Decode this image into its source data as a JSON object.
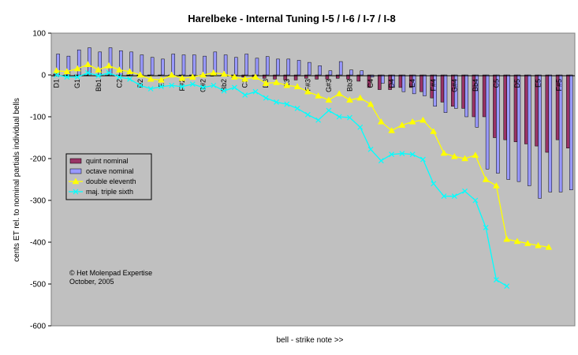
{
  "chart_data": {
    "type": "bar",
    "title": "Harelbeke - Internal Tuning I-5 / I-6 / I-7 / I-8",
    "xlabel": "bell - strike note >>",
    "ylabel": "cents ET rel. to nominal partials individual bells",
    "ylim": [
      -600,
      100
    ],
    "yticks": [
      100,
      0,
      -100,
      -200,
      -300,
      -400,
      -500,
      -600
    ],
    "grid": false,
    "background": "#c0c0c0",
    "legend_position": "left",
    "x_tick_labels": [
      "D1",
      "G1",
      "Bb1",
      "C2",
      "D2",
      "E2",
      "F#2",
      "G#2",
      "Bb2",
      "C3",
      "D3",
      "E3",
      "F#3",
      "G#3",
      "Bb3",
      "C4",
      "D4",
      "E4",
      "F#4",
      "G#4",
      "Bb4",
      "C5",
      "D5",
      "E5",
      "F#5"
    ],
    "x_tick_label_indices": [
      0,
      2,
      4,
      6,
      8,
      10,
      12,
      14,
      16,
      18,
      20,
      22,
      24,
      26,
      28,
      30,
      32,
      34,
      36,
      38,
      40,
      42,
      44,
      46,
      48
    ],
    "n_bells": 50,
    "series": [
      {
        "name": "quint nominal",
        "type": "bar",
        "color": "#993366",
        "values": [
          2,
          0,
          0,
          0,
          0,
          0,
          -2,
          0,
          0,
          0,
          0,
          0,
          0,
          0,
          0,
          -3,
          0,
          -5,
          -5,
          -5,
          -8,
          -10,
          -12,
          -12,
          -8,
          -10,
          -10,
          -8,
          -10,
          -15,
          -30,
          -35,
          -35,
          -30,
          -30,
          -40,
          -55,
          -65,
          -75,
          -80,
          -100,
          -100,
          -150,
          -155,
          -160,
          -165,
          -170,
          -185,
          -155,
          -175
        ]
      },
      {
        "name": "octave nominal",
        "type": "bar",
        "color": "#9999ff",
        "values": [
          50,
          45,
          60,
          65,
          55,
          65,
          58,
          55,
          48,
          42,
          38,
          50,
          48,
          48,
          45,
          55,
          48,
          42,
          50,
          40,
          44,
          38,
          38,
          35,
          30,
          22,
          10,
          32,
          12,
          10,
          -5,
          -20,
          -30,
          -40,
          -45,
          -50,
          -75,
          -90,
          -80,
          -100,
          -125,
          -225,
          -235,
          -250,
          -255,
          -265,
          -295,
          -280,
          -280,
          -275
        ]
      },
      {
        "name": "double eleventh",
        "type": "line",
        "color": "#ffff00",
        "marker": "triangle",
        "values": [
          10,
          8,
          15,
          25,
          12,
          22,
          12,
          8,
          0,
          -10,
          -12,
          0,
          -8,
          -5,
          0,
          5,
          2,
          -5,
          -10,
          -5,
          -20,
          -18,
          -25,
          -28,
          -40,
          -50,
          -60,
          -45,
          -60,
          -55,
          -70,
          -112,
          -133,
          -120,
          -112,
          -108,
          -135,
          -187,
          -195,
          -200,
          -192,
          -250,
          -265,
          -393,
          -398,
          -403,
          -408,
          -412
        ]
      },
      {
        "name": "maj. triple sixth",
        "type": "line",
        "color": "#00ffff",
        "marker": "x",
        "values": [
          0,
          -5,
          -5,
          5,
          -2,
          5,
          -5,
          -10,
          -25,
          -33,
          -28,
          -25,
          -28,
          -22,
          -30,
          -25,
          -38,
          -30,
          -48,
          -40,
          -55,
          -65,
          -70,
          -80,
          -95,
          -108,
          -85,
          -100,
          -102,
          -125,
          -178,
          -205,
          -190,
          -188,
          -190,
          -202,
          -260,
          -290,
          -290,
          -278,
          -300,
          -365,
          -490,
          -505
        ]
      }
    ],
    "annotations": [
      "© Het Molenpad Expertise",
      "October, 2005"
    ]
  }
}
